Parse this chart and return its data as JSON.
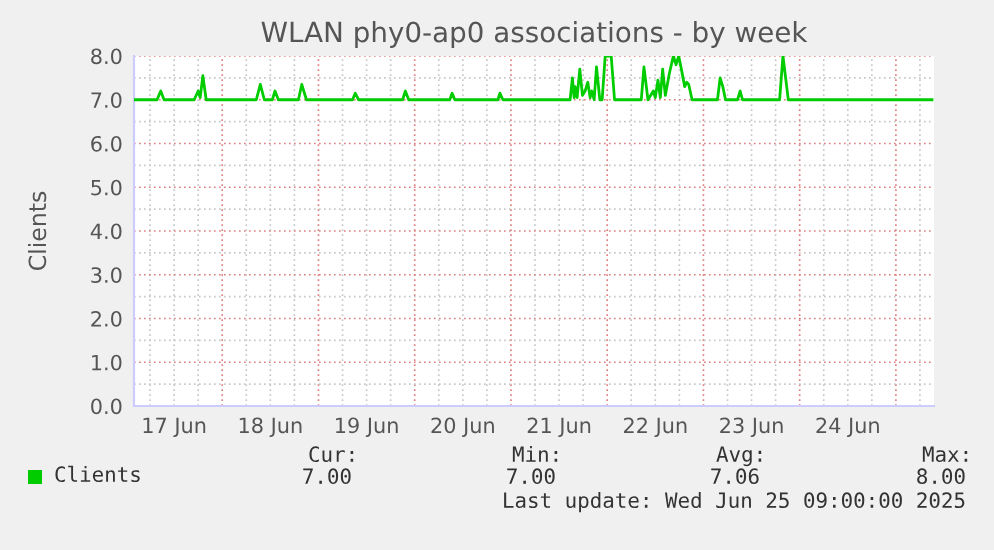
{
  "chart_data": {
    "type": "line",
    "title": "WLAN phy0-ap0 associations - by week",
    "ylabel": "Clients",
    "xlim": [
      "2025-06-17T02:00",
      "2025-06-25T09:30"
    ],
    "xticks": [
      {
        "value": "2025-06-17T06:00",
        "label": null
      },
      {
        "value": "2025-06-17T12:00",
        "label": "17 Jun"
      },
      {
        "value": "2025-06-17T18:00",
        "label": null
      },
      {
        "value": "2025-06-18T00:00",
        "label": null
      },
      {
        "value": "2025-06-18T06:00",
        "label": null
      },
      {
        "value": "2025-06-18T12:00",
        "label": "18 Jun"
      },
      {
        "value": "2025-06-18T18:00",
        "label": null
      },
      {
        "value": "2025-06-19T00:00",
        "label": null
      },
      {
        "value": "2025-06-19T06:00",
        "label": null
      },
      {
        "value": "2025-06-19T12:00",
        "label": "19 Jun"
      },
      {
        "value": "2025-06-19T18:00",
        "label": null
      },
      {
        "value": "2025-06-20T00:00",
        "label": null
      },
      {
        "value": "2025-06-20T06:00",
        "label": null
      },
      {
        "value": "2025-06-20T12:00",
        "label": "20 Jun"
      },
      {
        "value": "2025-06-20T18:00",
        "label": null
      },
      {
        "value": "2025-06-21T00:00",
        "label": null
      },
      {
        "value": "2025-06-21T06:00",
        "label": null
      },
      {
        "value": "2025-06-21T12:00",
        "label": "21 Jun"
      },
      {
        "value": "2025-06-21T18:00",
        "label": null
      },
      {
        "value": "2025-06-22T00:00",
        "label": null
      },
      {
        "value": "2025-06-22T06:00",
        "label": null
      },
      {
        "value": "2025-06-22T12:00",
        "label": "22 Jun"
      },
      {
        "value": "2025-06-22T18:00",
        "label": null
      },
      {
        "value": "2025-06-23T00:00",
        "label": null
      },
      {
        "value": "2025-06-23T06:00",
        "label": null
      },
      {
        "value": "2025-06-23T12:00",
        "label": "23 Jun"
      },
      {
        "value": "2025-06-23T18:00",
        "label": null
      },
      {
        "value": "2025-06-24T00:00",
        "label": null
      },
      {
        "value": "2025-06-24T06:00",
        "label": null
      },
      {
        "value": "2025-06-24T12:00",
        "label": "24 Jun"
      },
      {
        "value": "2025-06-24T18:00",
        "label": null
      },
      {
        "value": "2025-06-25T00:00",
        "label": null
      },
      {
        "value": "2025-06-25T06:00",
        "label": null
      }
    ],
    "ylim": [
      0,
      8
    ],
    "yticks": [
      {
        "value": 0,
        "label": "0.0"
      },
      {
        "value": 0.5,
        "label": null
      },
      {
        "value": 1,
        "label": "1.0"
      },
      {
        "value": 1.5,
        "label": null
      },
      {
        "value": 2,
        "label": "2.0"
      },
      {
        "value": 2.5,
        "label": null
      },
      {
        "value": 3,
        "label": "3.0"
      },
      {
        "value": 3.5,
        "label": null
      },
      {
        "value": 4,
        "label": "4.0"
      },
      {
        "value": 4.5,
        "label": null
      },
      {
        "value": 5,
        "label": "5.0"
      },
      {
        "value": 5.5,
        "label": null
      },
      {
        "value": 6,
        "label": "6.0"
      },
      {
        "value": 6.5,
        "label": null
      },
      {
        "value": 7,
        "label": "7.0"
      },
      {
        "value": 7.5,
        "label": null
      },
      {
        "value": 8,
        "label": "8.0"
      }
    ],
    "grid": true,
    "legend": "bottom",
    "marker": "none",
    "line_style": "solid",
    "series": [
      {
        "name": "Clients",
        "color": "#00cc00",
        "x": [
          "2025-06-17T02:00",
          "2025-06-17T07:45",
          "2025-06-17T08:40",
          "2025-06-17T09:30",
          "2025-06-17T17:00",
          "2025-06-17T18:00",
          "2025-06-17T18:30",
          "2025-06-17T19:10",
          "2025-06-17T20:00",
          "2025-06-18T08:30",
          "2025-06-18T09:30",
          "2025-06-18T10:30",
          "2025-06-18T12:30",
          "2025-06-18T13:10",
          "2025-06-18T14:00",
          "2025-06-18T19:00",
          "2025-06-18T19:50",
          "2025-06-18T21:00",
          "2025-06-19T08:30",
          "2025-06-19T09:10",
          "2025-06-19T10:00",
          "2025-06-19T21:00",
          "2025-06-19T21:40",
          "2025-06-19T22:30",
          "2025-06-20T08:45",
          "2025-06-20T09:20",
          "2025-06-20T10:00",
          "2025-06-20T20:45",
          "2025-06-20T21:15",
          "2025-06-20T22:00",
          "2025-06-21T14:45",
          "2025-06-21T15:20",
          "2025-06-21T15:45",
          "2025-06-21T16:00",
          "2025-06-21T16:30",
          "2025-06-21T17:10",
          "2025-06-21T17:50",
          "2025-06-21T18:30",
          "2025-06-21T19:10",
          "2025-06-21T19:45",
          "2025-06-21T20:10",
          "2025-06-21T20:45",
          "2025-06-21T21:20",
          "2025-06-21T22:10",
          "2025-06-21T22:45",
          "2025-06-21T23:30",
          "2025-06-22T01:00",
          "2025-06-22T01:50",
          "2025-06-22T08:30",
          "2025-06-22T09:10",
          "2025-06-22T10:10",
          "2025-06-22T11:30",
          "2025-06-22T12:00",
          "2025-06-22T12:40",
          "2025-06-22T13:15",
          "2025-06-22T13:50",
          "2025-06-22T14:30",
          "2025-06-22T15:30",
          "2025-06-22T16:30",
          "2025-06-22T17:10",
          "2025-06-22T17:50",
          "2025-06-22T18:30",
          "2025-06-22T19:20",
          "2025-06-22T19:50",
          "2025-06-22T20:20",
          "2025-06-22T21:10",
          "2025-06-23T03:30",
          "2025-06-23T04:10",
          "2025-06-23T04:50",
          "2025-06-23T05:30",
          "2025-06-23T08:30",
          "2025-06-23T09:10",
          "2025-06-23T09:45",
          "2025-06-23T19:00",
          "2025-06-23T19:50",
          "2025-06-23T21:10",
          "2025-06-25T09:00"
        ],
        "values": [
          7,
          7,
          7.2,
          7,
          7,
          7.2,
          7.05,
          7.55,
          7,
          7,
          7.35,
          7,
          7,
          7.2,
          7,
          7,
          7.35,
          7,
          7,
          7.15,
          7,
          7,
          7.2,
          7,
          7,
          7.15,
          7,
          7,
          7.15,
          7,
          7,
          7.5,
          7.05,
          7.3,
          7.05,
          7.7,
          7.1,
          7.2,
          7.4,
          7.05,
          7.2,
          7,
          7.75,
          7,
          7,
          8,
          8,
          7,
          7,
          7.75,
          7,
          7.2,
          7.05,
          7.45,
          7.05,
          7.7,
          7.1,
          7.6,
          8,
          7.8,
          8,
          7.7,
          7.3,
          7.4,
          7.35,
          7,
          7,
          7.5,
          7.3,
          7,
          7,
          7.2,
          7,
          7,
          8,
          7,
          7
        ]
      }
    ],
    "annotations": [
      "Cur:",
      "7.00",
      "Min:",
      "7.00",
      "Avg:",
      "7.06",
      "Max:",
      "8.00",
      "Last update: Wed Jun 25 09:00:00 2025"
    ]
  }
}
